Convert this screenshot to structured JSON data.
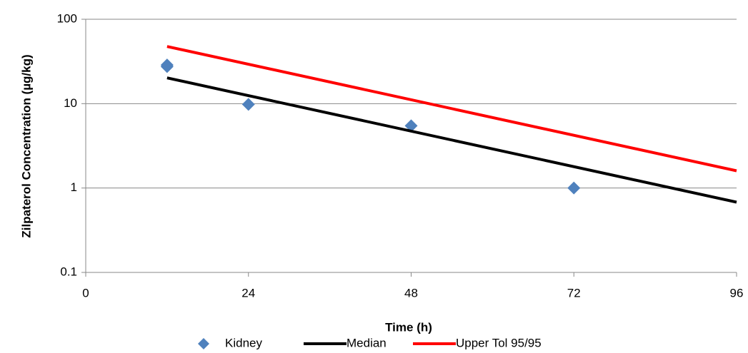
{
  "chart_data": {
    "type": "scatter",
    "x_label": "Time (h)",
    "y_label": "Zilpaterol Concentration (µg/kg)",
    "xlim": [
      0,
      96
    ],
    "xticks": [
      0,
      24,
      48,
      72,
      96
    ],
    "ylim": [
      0.1,
      100
    ],
    "yticks": [
      0.1,
      1,
      10,
      100
    ],
    "log_y": true,
    "grid": true,
    "legend": "bottom",
    "series": [
      {
        "name": "Kidney",
        "mode": "markers",
        "color": "#4f81bd",
        "x": [
          12,
          12,
          24,
          48,
          72
        ],
        "values": [
          28.7,
          27.5,
          9.8,
          5.46,
          1.0
        ]
      },
      {
        "name": "Median",
        "mode": "line",
        "color": "#000000",
        "x": [
          12,
          96
        ],
        "values": [
          20.2,
          0.68
        ]
      },
      {
        "name": "Upper Tol 95/95",
        "mode": "line",
        "color": "#ff0000",
        "x": [
          12,
          96
        ],
        "values": [
          47.6,
          1.6
        ]
      }
    ]
  }
}
